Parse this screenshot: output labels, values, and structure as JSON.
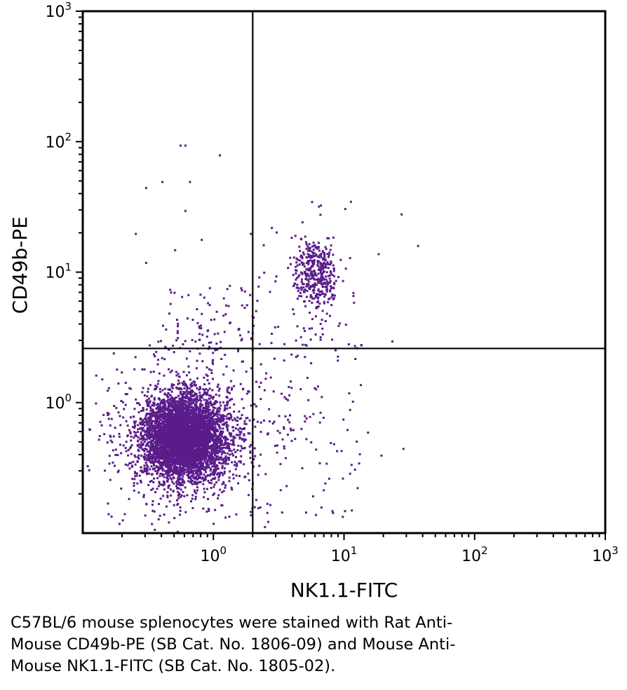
{
  "chart_data": {
    "type": "scatter",
    "title": "",
    "xlabel": "NK1.1-FITC",
    "ylabel": "CD49b-PE",
    "xscale": "log",
    "yscale": "log",
    "xlim": [
      0.1,
      1000
    ],
    "ylim": [
      0.1,
      1000
    ],
    "xticks": [
      {
        "value": 1,
        "base": "10",
        "exp": "0"
      },
      {
        "value": 10,
        "base": "10",
        "exp": "1"
      },
      {
        "value": 100,
        "base": "10",
        "exp": "2"
      },
      {
        "value": 1000,
        "base": "10",
        "exp": "3"
      }
    ],
    "yticks": [
      {
        "value": 1,
        "base": "10",
        "exp": "0"
      },
      {
        "value": 10,
        "base": "10",
        "exp": "1"
      },
      {
        "value": 100,
        "base": "10",
        "exp": "2"
      },
      {
        "value": 1000,
        "base": "10",
        "exp": "3"
      }
    ],
    "grid": false,
    "point_color": "#5a1c8a",
    "quadrant_gates": {
      "x": 2.0,
      "y": 2.6
    },
    "populations": [
      {
        "description": "double negative cluster",
        "center": [
          0.58,
          0.55
        ],
        "count": 5200
      },
      {
        "description": "NK1.1+ CD49b+ cluster",
        "center": [
          6.0,
          10.0
        ],
        "count": 430
      }
    ],
    "sample_points": [
      [
        0.55,
        95
      ],
      [
        0.6,
        95
      ],
      [
        1.1,
        80
      ],
      [
        0.4,
        50
      ],
      [
        0.65,
        50
      ],
      [
        0.3,
        45
      ],
      [
        0.6,
        30
      ],
      [
        0.25,
        20
      ],
      [
        1.9,
        20
      ],
      [
        0.8,
        18
      ],
      [
        0.5,
        15
      ],
      [
        0.3,
        12
      ],
      [
        23,
        3.0
      ],
      [
        19,
        0.4
      ],
      [
        28,
        0.45
      ],
      [
        15,
        0.6
      ],
      [
        12,
        2.2
      ],
      [
        10,
        0.15
      ],
      [
        8,
        0.15
      ]
    ]
  },
  "caption": {
    "lines": [
      "C57BL/6 mouse splenocytes were stained with Rat Anti-",
      "Mouse CD49b-PE (SB Cat. No. 1806-09) and Mouse Anti-",
      "Mouse NK1.1-FITC (SB Cat. No. 1805-02)."
    ]
  }
}
